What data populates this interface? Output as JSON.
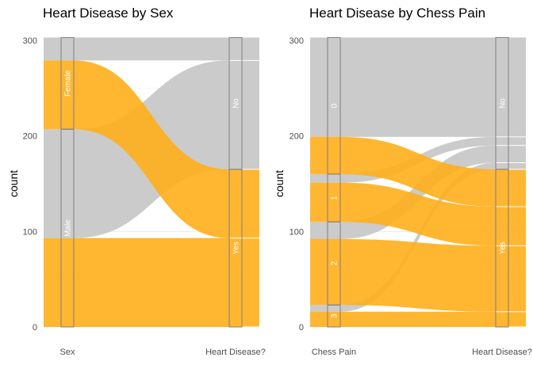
{
  "colors": {
    "yes": "#FFAE1A",
    "no": "#C8C8C8",
    "grid": "#EBEBEB",
    "box": "#7F7F7F"
  },
  "chart_data": [
    {
      "type": "alluvial",
      "title": "Heart Disease by Sex",
      "xlabel": "",
      "ylabel": "count",
      "ylim": [
        0,
        300
      ],
      "yticks": [
        0,
        100,
        200,
        300
      ],
      "axes": [
        "Sex",
        "Heart Disease?"
      ],
      "total": 303,
      "left_strata": [
        {
          "label": "Female",
          "count": 96
        },
        {
          "label": "Male",
          "count": 207
        }
      ],
      "right_strata": [
        {
          "label": "No",
          "count": 138
        },
        {
          "label": "Yes",
          "count": 165
        }
      ],
      "flows": [
        {
          "from": "Female",
          "to": "No",
          "count": 24
        },
        {
          "from": "Female",
          "to": "Yes",
          "count": 72
        },
        {
          "from": "Male",
          "to": "No",
          "count": 114
        },
        {
          "from": "Male",
          "to": "Yes",
          "count": 93
        }
      ],
      "grid": true,
      "legend": "none"
    },
    {
      "type": "alluvial",
      "title": "Heart Disease by Chess Pain",
      "xlabel": "",
      "ylabel": "count",
      "ylim": [
        0,
        300
      ],
      "yticks": [
        0,
        100,
        200,
        300
      ],
      "axes": [
        "Chess Pain",
        "Heart Disease?"
      ],
      "total": 303,
      "left_strata": [
        {
          "label": "0",
          "count": 143
        },
        {
          "label": "1",
          "count": 50
        },
        {
          "label": "2",
          "count": 87
        },
        {
          "label": "3",
          "count": 23
        }
      ],
      "right_strata": [
        {
          "label": "No",
          "count": 138
        },
        {
          "label": "Yes",
          "count": 165
        }
      ],
      "flows": [
        {
          "from": "0",
          "to": "No",
          "count": 104
        },
        {
          "from": "0",
          "to": "Yes",
          "count": 39
        },
        {
          "from": "1",
          "to": "No",
          "count": 9
        },
        {
          "from": "1",
          "to": "Yes",
          "count": 41
        },
        {
          "from": "2",
          "to": "No",
          "count": 18
        },
        {
          "from": "2",
          "to": "Yes",
          "count": 69
        },
        {
          "from": "3",
          "to": "No",
          "count": 7
        },
        {
          "from": "3",
          "to": "Yes",
          "count": 16
        }
      ],
      "grid": true,
      "legend": "none"
    }
  ]
}
